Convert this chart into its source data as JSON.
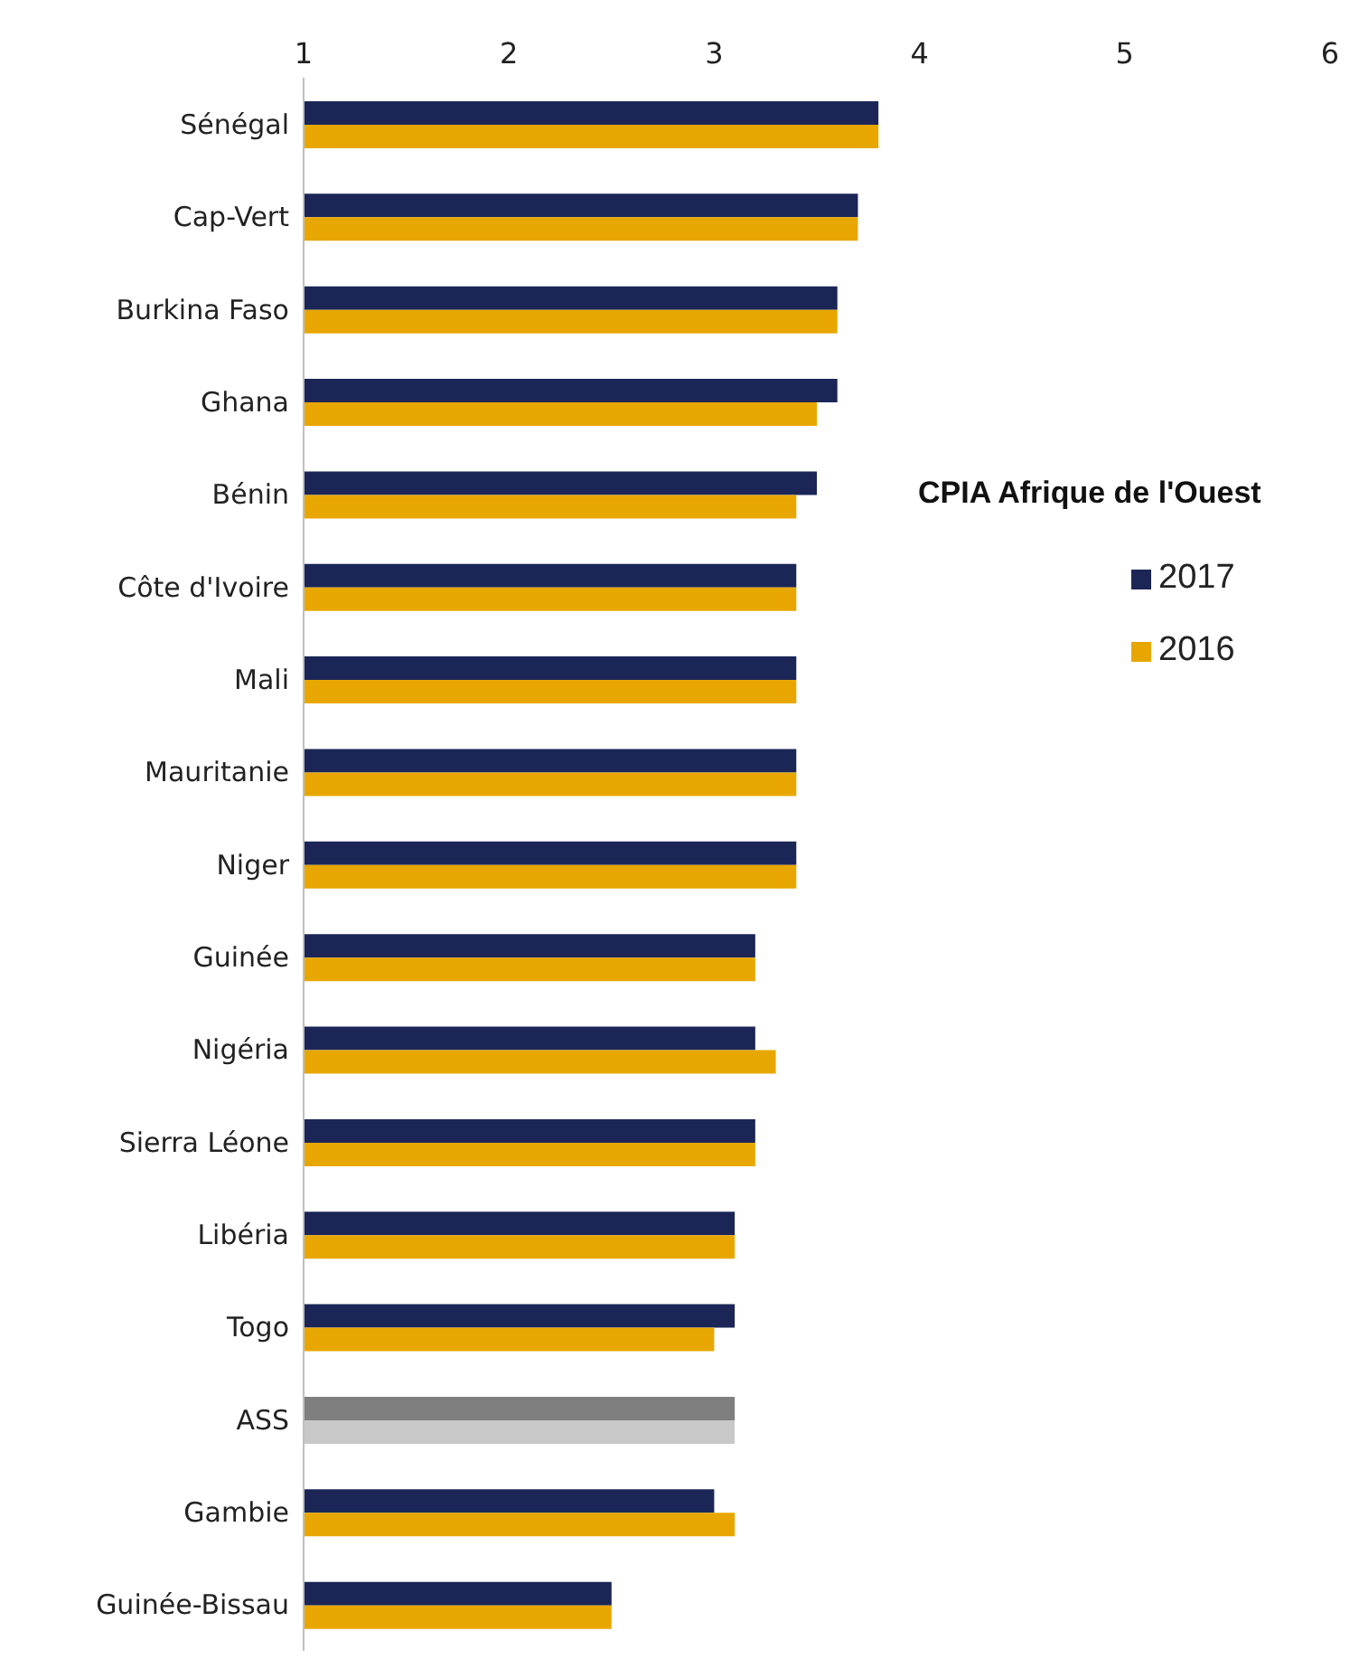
{
  "chart_data": {
    "type": "bar",
    "orientation": "horizontal",
    "legend_title": "CPIA Afrique de l'Ouest",
    "legend": "right",
    "grid": false,
    "categories": [
      "Sénégal",
      "Cap-Vert",
      "Burkina Faso",
      "Ghana",
      "Bénin",
      "Côte d'Ivoire",
      "Mali",
      "Mauritanie",
      "Niger",
      "Guinée",
      "Nigéria",
      "Sierra Léone",
      "Libéria",
      "Togo",
      "ASS",
      "Gambie",
      "Guinée-Bissau"
    ],
    "xlim": [
      1,
      6
    ],
    "xticks": [
      1,
      2,
      3,
      4,
      5,
      6
    ],
    "series": [
      {
        "name": "2017",
        "color": "#1b2657",
        "colors": [
          "#1b2657",
          "#1b2657",
          "#1b2657",
          "#1b2657",
          "#1b2657",
          "#1b2657",
          "#1b2657",
          "#1b2657",
          "#1b2657",
          "#1b2657",
          "#1b2657",
          "#1b2657",
          "#1b2657",
          "#1b2657",
          "#7f7f7f",
          "#1b2657",
          "#1b2657"
        ],
        "values": [
          3.8,
          3.7,
          3.6,
          3.6,
          3.5,
          3.4,
          3.4,
          3.4,
          3.4,
          3.2,
          3.2,
          3.2,
          3.1,
          3.1,
          3.1,
          3.0,
          2.5
        ]
      },
      {
        "name": "2016",
        "color": "#e8a700",
        "colors": [
          "#e8a700",
          "#e8a700",
          "#e8a700",
          "#e8a700",
          "#e8a700",
          "#e8a700",
          "#e8a700",
          "#e8a700",
          "#e8a700",
          "#e8a700",
          "#e8a700",
          "#e8a700",
          "#e8a700",
          "#e8a700",
          "#c8c8c8",
          "#e8a700",
          "#e8a700"
        ],
        "values": [
          3.8,
          3.7,
          3.6,
          3.5,
          3.4,
          3.4,
          3.4,
          3.4,
          3.4,
          3.2,
          3.3,
          3.2,
          3.1,
          3.0,
          3.1,
          3.1,
          2.5
        ]
      }
    ]
  }
}
